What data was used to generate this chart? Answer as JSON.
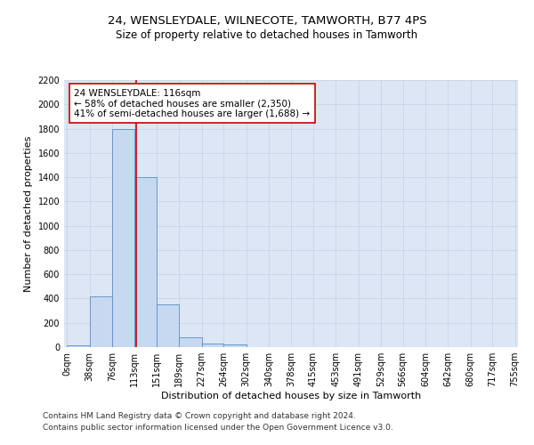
{
  "title": "24, WENSLEYDALE, WILNECOTE, TAMWORTH, B77 4PS",
  "subtitle": "Size of property relative to detached houses in Tamworth",
  "xlabel": "Distribution of detached houses by size in Tamworth",
  "ylabel": "Number of detached properties",
  "bin_edges": [
    0,
    38,
    76,
    113,
    151,
    189,
    227,
    264,
    302,
    340,
    378,
    415,
    453,
    491,
    529,
    566,
    604,
    642,
    680,
    717,
    755
  ],
  "bin_counts": [
    15,
    420,
    1800,
    1400,
    350,
    80,
    30,
    20,
    0,
    0,
    0,
    0,
    0,
    0,
    0,
    0,
    0,
    0,
    0,
    0
  ],
  "bar_color": "#c6d9f0",
  "bar_edge_color": "#5b8dc8",
  "property_size": 116,
  "vline_color": "#cc0000",
  "annotation_line1": "24 WENSLEYDALE: 116sqm",
  "annotation_line2": "← 58% of detached houses are smaller (2,350)",
  "annotation_line3": "41% of semi-detached houses are larger (1,688) →",
  "annotation_box_color": "#ffffff",
  "annotation_box_edge_color": "#cc0000",
  "ylim": [
    0,
    2200
  ],
  "yticks": [
    0,
    200,
    400,
    600,
    800,
    1000,
    1200,
    1400,
    1600,
    1800,
    2000,
    2200
  ],
  "grid_color": "#c8d4e8",
  "background_color": "#dce6f4",
  "fig_background_color": "#ffffff",
  "footer_line1": "Contains HM Land Registry data © Crown copyright and database right 2024.",
  "footer_line2": "Contains public sector information licensed under the Open Government Licence v3.0.",
  "title_fontsize": 9.5,
  "subtitle_fontsize": 8.5,
  "axis_label_fontsize": 8,
  "tick_fontsize": 7,
  "annotation_fontsize": 7.5,
  "footer_fontsize": 6.5
}
